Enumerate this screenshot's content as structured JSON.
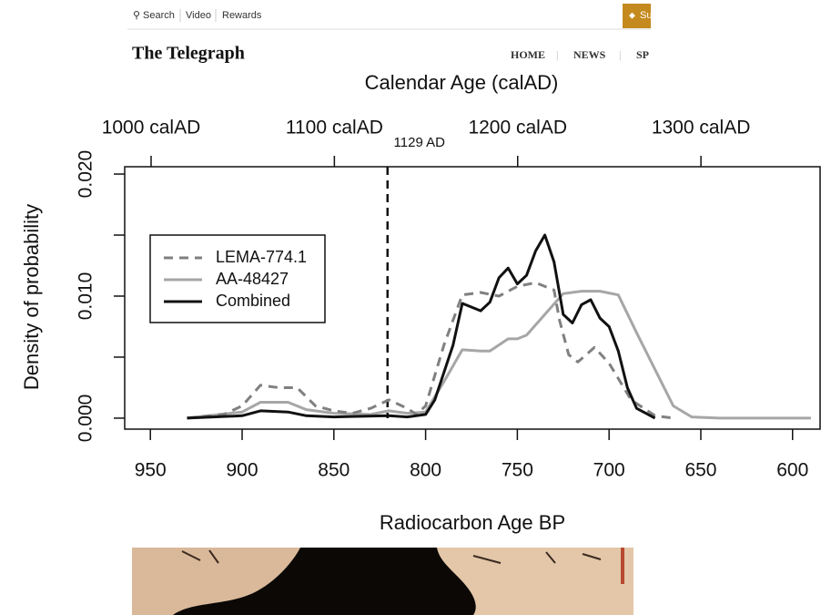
{
  "header": {
    "links": [
      "Search",
      "Video",
      "Rewards"
    ],
    "button": "Su",
    "logo": "The Telegraph",
    "nav": [
      "HOME",
      "NEWS",
      "SP"
    ]
  },
  "chart_data": {
    "type": "line",
    "title": "Calendar Age (calAD)",
    "xlabel": "Radiocarbon Age BP",
    "ylabel": "Density of probability",
    "xlim": [
      964,
      585
    ],
    "xticks": [
      950,
      900,
      850,
      800,
      750,
      700,
      650,
      600
    ],
    "ylim": [
      -0.0009,
      0.0206
    ],
    "yticks": [
      {
        "value": 0,
        "label": "0.000"
      },
      {
        "value": 0.01,
        "label": "0.010"
      },
      {
        "value": 0.02,
        "label": "0.020"
      }
    ],
    "yminorticks": [
      0.005,
      0.015
    ],
    "x2lim": [
      985.6,
      1365
    ],
    "x2ticks": [
      {
        "value": 1000,
        "label": "1000 calAD"
      },
      {
        "value": 1100,
        "label": "1100 calAD"
      },
      {
        "value": 1200,
        "label": "1200 calAD"
      },
      {
        "value": 1300,
        "label": "1300 calAD"
      }
    ],
    "annotation": {
      "x2": 1129,
      "label": "1129 AD"
    },
    "legend": "upper left",
    "series": [
      {
        "name": "LEMA-774.1",
        "color": "#808080",
        "linestyle": "dashed",
        "x": [
          930,
          910,
          900,
          890,
          880,
          870,
          860,
          850,
          840,
          830,
          820,
          810,
          805,
          800,
          790,
          780,
          770,
          760,
          750,
          740,
          730,
          727,
          722,
          717,
          708,
          700,
          688,
          675,
          665
        ],
        "values": [
          0,
          0.0003,
          0.001,
          0.0027,
          0.0025,
          0.0025,
          0.001,
          0.0006,
          0.0004,
          0.0008,
          0.0015,
          0.0008,
          0.0003,
          0.001,
          0.006,
          0.0101,
          0.0103,
          0.01,
          0.0108,
          0.0111,
          0.0105,
          0.008,
          0.0052,
          0.0046,
          0.0058,
          0.0045,
          0.0015,
          0.0002,
          0
        ]
      },
      {
        "name": "AA-48427",
        "color": "#a6a6a6",
        "linestyle": "solid",
        "x": [
          930,
          900,
          890,
          875,
          865,
          850,
          830,
          820,
          810,
          800,
          790,
          780,
          770,
          765,
          755,
          750,
          745,
          735,
          725,
          715,
          705,
          695,
          685,
          675,
          665,
          655,
          640,
          590
        ],
        "values": [
          0,
          0.0005,
          0.0013,
          0.0013,
          0.0007,
          0.0004,
          0.0003,
          0.0006,
          0.0004,
          0.0005,
          0.003,
          0.0056,
          0.0055,
          0.0055,
          0.0065,
          0.0065,
          0.0068,
          0.0085,
          0.0102,
          0.0104,
          0.0104,
          0.0101,
          0.007,
          0.004,
          0.001,
          0.0001,
          0,
          0
        ]
      },
      {
        "name": "Combined",
        "color": "#111111",
        "linestyle": "solid",
        "x": [
          930,
          900,
          890,
          875,
          865,
          850,
          820,
          810,
          800,
          795,
          785,
          780,
          770,
          765,
          760,
          755,
          750,
          745,
          740,
          735,
          730,
          725,
          720,
          715,
          710,
          705,
          700,
          695,
          690,
          685,
          675
        ],
        "values": [
          0,
          0.0002,
          0.0006,
          0.0005,
          0.0002,
          0.0001,
          0.0002,
          0.0001,
          0.0003,
          0.0015,
          0.006,
          0.0094,
          0.0088,
          0.0095,
          0.0115,
          0.0123,
          0.011,
          0.0117,
          0.0137,
          0.015,
          0.0128,
          0.0085,
          0.0078,
          0.0093,
          0.0097,
          0.0082,
          0.0075,
          0.0055,
          0.0025,
          0.0008,
          0
        ]
      }
    ]
  }
}
